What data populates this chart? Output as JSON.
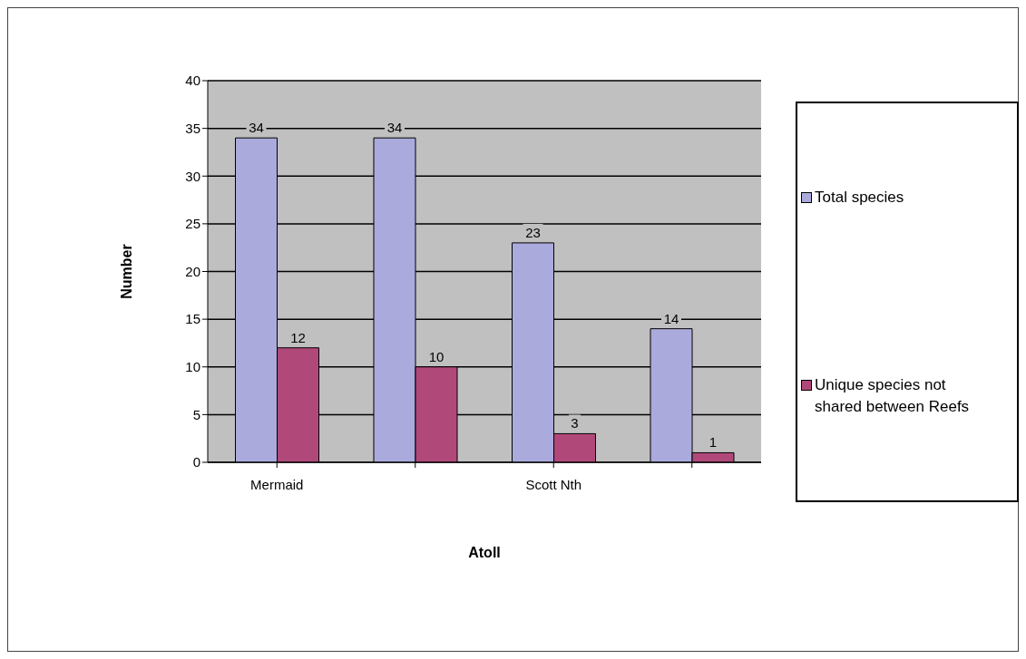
{
  "chart_data": {
    "type": "bar",
    "categories": [
      "Mermaid",
      null,
      "Scott Nth",
      null
    ],
    "xlabel": "Atoll",
    "ylabel": "Number",
    "series": [
      {
        "name": "Total species",
        "color": "#aaaadd",
        "values": [
          34,
          34,
          23,
          14
        ]
      },
      {
        "name": "Unique species not shared between Reefs",
        "color": "#b0487a",
        "values": [
          12,
          10,
          3,
          1
        ]
      }
    ],
    "ylim": [
      0,
      40
    ],
    "yticks": [
      0,
      5,
      10,
      15,
      20,
      25,
      30,
      35,
      40
    ],
    "grid": "y",
    "legend": "right",
    "data_labels": true
  }
}
